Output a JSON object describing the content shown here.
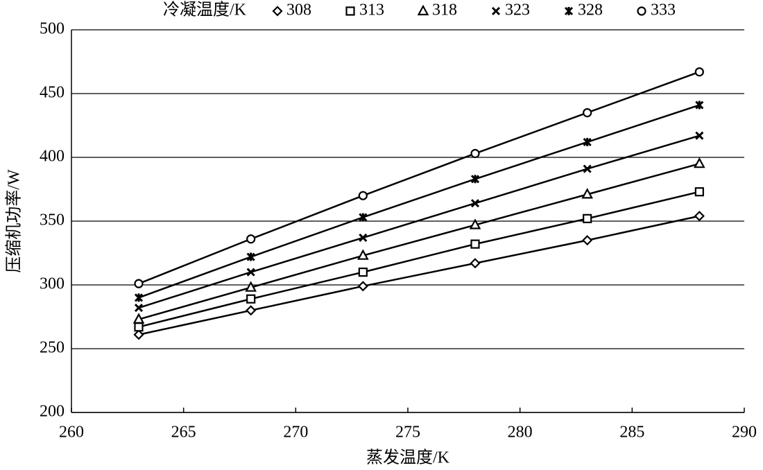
{
  "chart_data": {
    "type": "line",
    "legend_title": "冷凝温度/K",
    "x_label": "蒸发温度/K",
    "y_label": "压缩机功率/W",
    "x": [
      263,
      268,
      273,
      278,
      283,
      288
    ],
    "series": [
      {
        "name": "308",
        "color": "#000000",
        "marker": "diamond",
        "values": [
          261,
          280,
          299,
          317,
          335,
          354
        ]
      },
      {
        "name": "313",
        "color": "#000000",
        "marker": "square",
        "values": [
          267,
          289,
          310,
          332,
          352,
          373
        ]
      },
      {
        "name": "318",
        "color": "#000000",
        "marker": "triangle",
        "values": [
          273,
          298,
          323,
          347,
          371,
          395
        ]
      },
      {
        "name": "323",
        "color": "#000000",
        "marker": "x",
        "values": [
          282,
          310,
          337,
          364,
          391,
          417
        ]
      },
      {
        "name": "328",
        "color": "#000000",
        "marker": "star",
        "values": [
          290,
          322,
          353,
          383,
          412,
          441
        ]
      },
      {
        "name": "333",
        "color": "#000000",
        "marker": "circle",
        "values": [
          301,
          336,
          370,
          403,
          435,
          467
        ]
      }
    ],
    "xlim": [
      260,
      290
    ],
    "xticks": [
      260,
      265,
      270,
      275,
      280,
      285,
      290
    ],
    "ylim": [
      200,
      500
    ],
    "yticks": [
      200,
      250,
      300,
      350,
      400,
      450,
      500
    ],
    "grid": true
  }
}
